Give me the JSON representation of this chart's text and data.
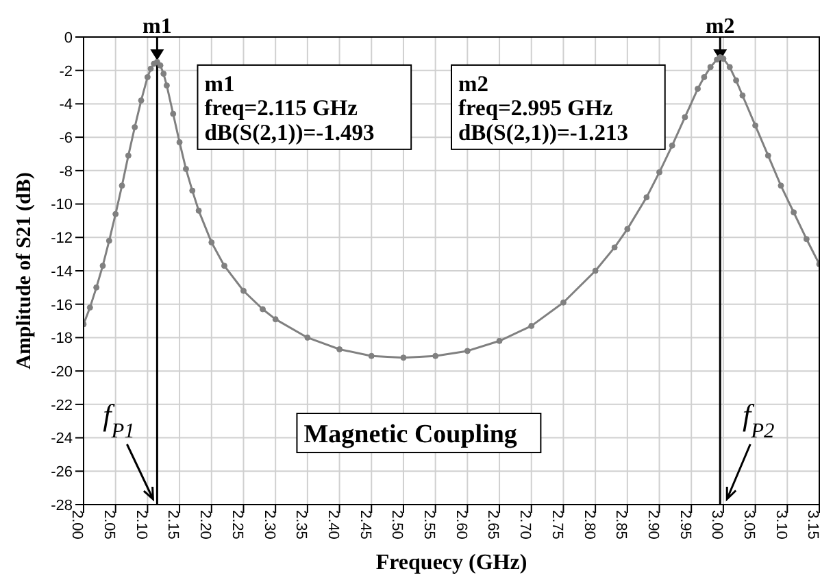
{
  "chart_data": {
    "type": "line",
    "xlabel": "Frequecy (GHz)",
    "ylabel": "Amplitude of S21 (dB)",
    "x": [
      2.0,
      2.01,
      2.02,
      2.03,
      2.04,
      2.05,
      2.06,
      2.07,
      2.08,
      2.09,
      2.1,
      2.105,
      2.11,
      2.115,
      2.12,
      2.125,
      2.13,
      2.14,
      2.15,
      2.16,
      2.17,
      2.18,
      2.2,
      2.22,
      2.25,
      2.28,
      2.3,
      2.35,
      2.4,
      2.45,
      2.5,
      2.55,
      2.6,
      2.65,
      2.7,
      2.75,
      2.8,
      2.83,
      2.85,
      2.88,
      2.9,
      2.92,
      2.94,
      2.96,
      2.97,
      2.98,
      2.99,
      2.995,
      3.0,
      3.01,
      3.02,
      3.03,
      3.05,
      3.07,
      3.09,
      3.11,
      3.13,
      3.15
    ],
    "series": [
      {
        "color": "#808080",
        "values": [
          -17.2,
          -16.2,
          -15.0,
          -13.7,
          -12.2,
          -10.6,
          -8.9,
          -7.1,
          -5.4,
          -3.8,
          -2.4,
          -1.9,
          -1.6,
          -1.493,
          -1.7,
          -2.2,
          -2.9,
          -4.6,
          -6.3,
          -7.9,
          -9.2,
          -10.4,
          -12.3,
          -13.7,
          -15.2,
          -16.3,
          -16.9,
          -18.0,
          -18.7,
          -19.1,
          -19.2,
          -19.1,
          -18.8,
          -18.2,
          -17.3,
          -15.9,
          -14.0,
          -12.6,
          -11.5,
          -9.6,
          -8.1,
          -6.5,
          -4.8,
          -3.1,
          -2.4,
          -1.8,
          -1.35,
          -1.213,
          -1.3,
          -1.8,
          -2.6,
          -3.5,
          -5.3,
          -7.1,
          -8.9,
          -10.5,
          -12.1,
          -13.6
        ]
      }
    ],
    "xlim": [
      2.0,
      3.15
    ],
    "xticks": [
      {
        "value": 2.0,
        "label": "2.00"
      },
      2.05,
      {
        "value": 2.1,
        "label": "2.10"
      },
      2.15,
      {
        "value": 2.2,
        "label": "2.20"
      },
      2.25,
      {
        "value": 2.3,
        "label": "2.30"
      },
      2.35,
      {
        "value": 2.4,
        "label": "2.40"
      },
      2.45,
      {
        "value": 2.5,
        "label": "2.50"
      },
      2.55,
      {
        "value": 2.6,
        "label": "2.60"
      },
      2.65,
      {
        "value": 2.7,
        "label": "2.70"
      },
      2.75,
      {
        "value": 2.8,
        "label": "2.80"
      },
      2.85,
      {
        "value": 2.9,
        "label": "2.90"
      },
      2.95,
      {
        "value": 3.0,
        "label": "3.00"
      },
      3.05,
      {
        "value": 3.1,
        "label": "3.10"
      },
      3.15
    ],
    "ylim": [
      -28,
      0
    ],
    "yticks": [
      -28,
      -26,
      -24,
      -22,
      -20,
      -18,
      -16,
      -14,
      -12,
      -10,
      -8,
      -6,
      -4,
      -2,
      0
    ],
    "grid": true,
    "marker": "circle",
    "line_style": "solid",
    "legend": false,
    "ref_lines": [
      {
        "axis": "x",
        "value": 2.115,
        "color": "#000000",
        "label": "m1"
      },
      {
        "axis": "x",
        "value": 2.995,
        "color": "#000000",
        "label": "m2"
      }
    ],
    "annotations": [
      "m1\nfreq=2.115 GHz\ndB(S(2,1))=-1.493",
      "m2\nfreq=2.995 GHz\ndB(S(2,1))=-1.213",
      "Magnetic Coupling",
      "f$_{P1}$",
      "f$_{P2}$"
    ]
  }
}
